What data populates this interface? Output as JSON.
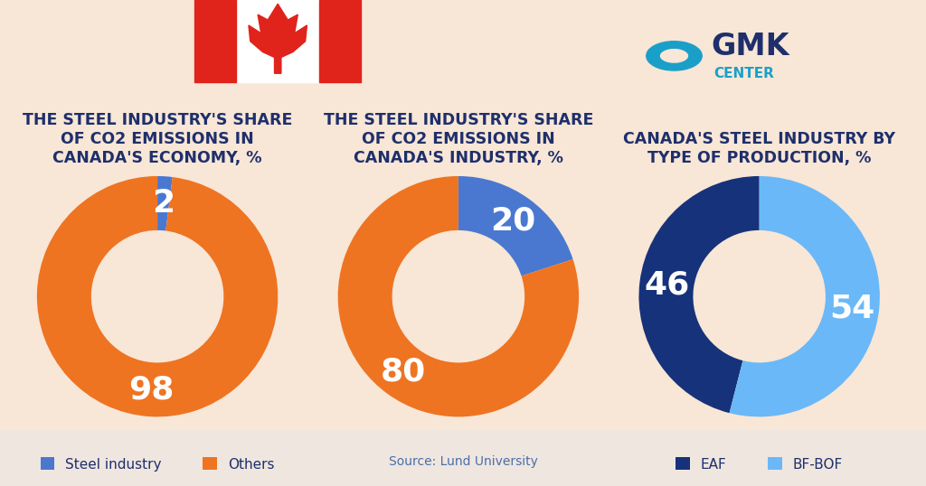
{
  "chart_data": [
    {
      "type": "pie",
      "title": "THE STEEL INDUSTRY'S SHARE OF CO2 EMISSIONS IN CANADA'S ECONOMY, %",
      "categories": [
        "Steel industry",
        "Others"
      ],
      "values": [
        2,
        98
      ],
      "colors": [
        "#4a78d0",
        "#ee7422"
      ],
      "data_labels": true,
      "legend": "lower center"
    },
    {
      "type": "pie",
      "title": "THE STEEL INDUSTRY'S SHARE OF CO2 EMISSIONS IN CANADA'S INDUSTRY, %",
      "categories": [
        "Steel industry",
        "Others"
      ],
      "values": [
        20,
        80
      ],
      "colors": [
        "#4a78d0",
        "#ee7422"
      ],
      "data_labels": true
    },
    {
      "type": "pie",
      "title": "CANADA'S STEEL INDUSTRY BY TYPE OF PRODUCTION, %",
      "categories": [
        "EAF",
        "BF-BOF"
      ],
      "values": [
        46,
        54
      ],
      "colors": [
        "#16327a",
        "#6ab8f7"
      ],
      "data_labels": true,
      "legend": "lower center"
    }
  ],
  "source": "Source: Lund University",
  "brand": [
    "GMK",
    "CENTER"
  ]
}
